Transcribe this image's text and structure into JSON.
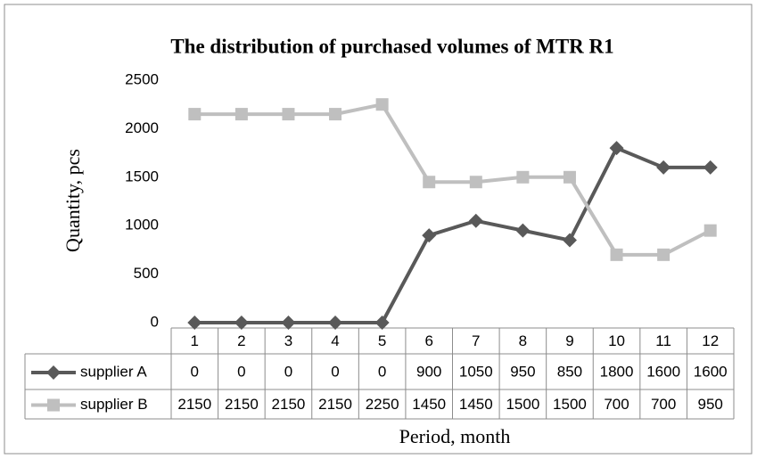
{
  "chart_data": {
    "type": "line",
    "title": "The distribution of purchased volumes of MTR R1",
    "x_label": "Period, month",
    "y_label": "Quantity, pcs",
    "categories": [
      "1",
      "2",
      "3",
      "4",
      "5",
      "6",
      "7",
      "8",
      "9",
      "10",
      "11",
      "12"
    ],
    "series": [
      {
        "name": "supplier A",
        "color": "#595959",
        "marker": "diamond",
        "values": [
          0,
          0,
          0,
          0,
          0,
          900,
          1050,
          950,
          850,
          1800,
          1600,
          1600
        ]
      },
      {
        "name": "supplier B",
        "color": "#bfbfbf",
        "marker": "square",
        "values": [
          2150,
          2150,
          2150,
          2150,
          2250,
          1450,
          1450,
          1500,
          1500,
          700,
          700,
          950
        ]
      }
    ],
    "ylim": [
      0,
      2500
    ],
    "yticks": [
      0,
      500,
      1000,
      1500,
      2000,
      2500
    ],
    "grid": false,
    "data_table": true
  }
}
